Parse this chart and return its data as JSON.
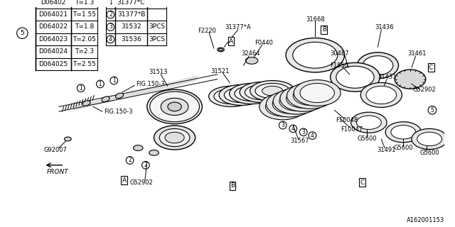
{
  "title": "",
  "bg_color": "#ffffff",
  "border_color": "#000000",
  "diagram_note": "A162001153",
  "table1": {
    "circle_label": "5",
    "rows": [
      [
        "D06402",
        "T=1.3"
      ],
      [
        "D064021",
        "T=1.55"
      ],
      [
        "D064022",
        "T=1.8"
      ],
      [
        "D064023",
        "T=2.05"
      ],
      [
        "D064024",
        "T=2.3"
      ],
      [
        "D064025",
        "T=2.55"
      ]
    ]
  },
  "table2": {
    "rows": [
      [
        "1",
        "31377*C",
        ""
      ],
      [
        "2",
        "31377*B",
        ""
      ],
      [
        "3",
        "31532",
        "3PCS"
      ],
      [
        "4",
        "31536",
        "3PCS"
      ]
    ]
  },
  "part_labels": [
    "31377*A",
    "31668",
    "31436",
    "F2220",
    "32464",
    "F0440",
    "31521",
    "31513",
    "FIG.150-3",
    "FIG.150-3",
    "G92007",
    "G52902",
    "G52902",
    "30487",
    "F1950",
    "31431",
    "F10048",
    "F10047",
    "G5600",
    "G5600",
    "G5600",
    "31567",
    "31491",
    "31461",
    "G52902"
  ],
  "front_label": "FRONT",
  "box_labels": [
    "A",
    "B",
    "C"
  ],
  "line_color": "#000000",
  "fill_color": "#f0f0f0",
  "text_color": "#000000",
  "font_size": 7
}
